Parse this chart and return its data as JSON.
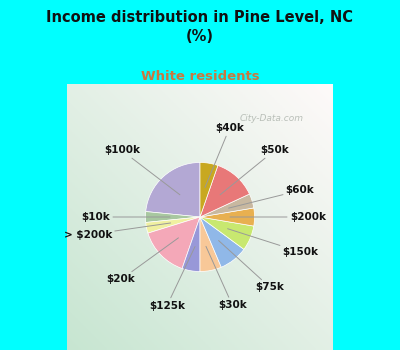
{
  "title": "Income distribution in Pine Level, NC\n(%)",
  "subtitle": "White residents",
  "title_color": "#111111",
  "subtitle_color": "#c87941",
  "bg_color": "#00ffff",
  "watermark": "City-Data.com",
  "labels": [
    "$100k",
    "$10k",
    "> $200k",
    "$20k",
    "$125k",
    "$30k",
    "$75k",
    "$150k",
    "$200k",
    "$60k",
    "$50k",
    "$40k"
  ],
  "values": [
    22,
    3,
    3,
    14,
    5,
    6,
    8,
    7,
    5,
    4,
    12,
    5
  ],
  "colors": [
    "#b3a8d4",
    "#a8c8a0",
    "#f0f0a0",
    "#f4a8b8",
    "#9898d8",
    "#f8c898",
    "#90b8e8",
    "#c8e870",
    "#e8b050",
    "#c8b8a0",
    "#e87878",
    "#c8a820"
  ],
  "label_fontsize": 7.5,
  "startangle": 90
}
